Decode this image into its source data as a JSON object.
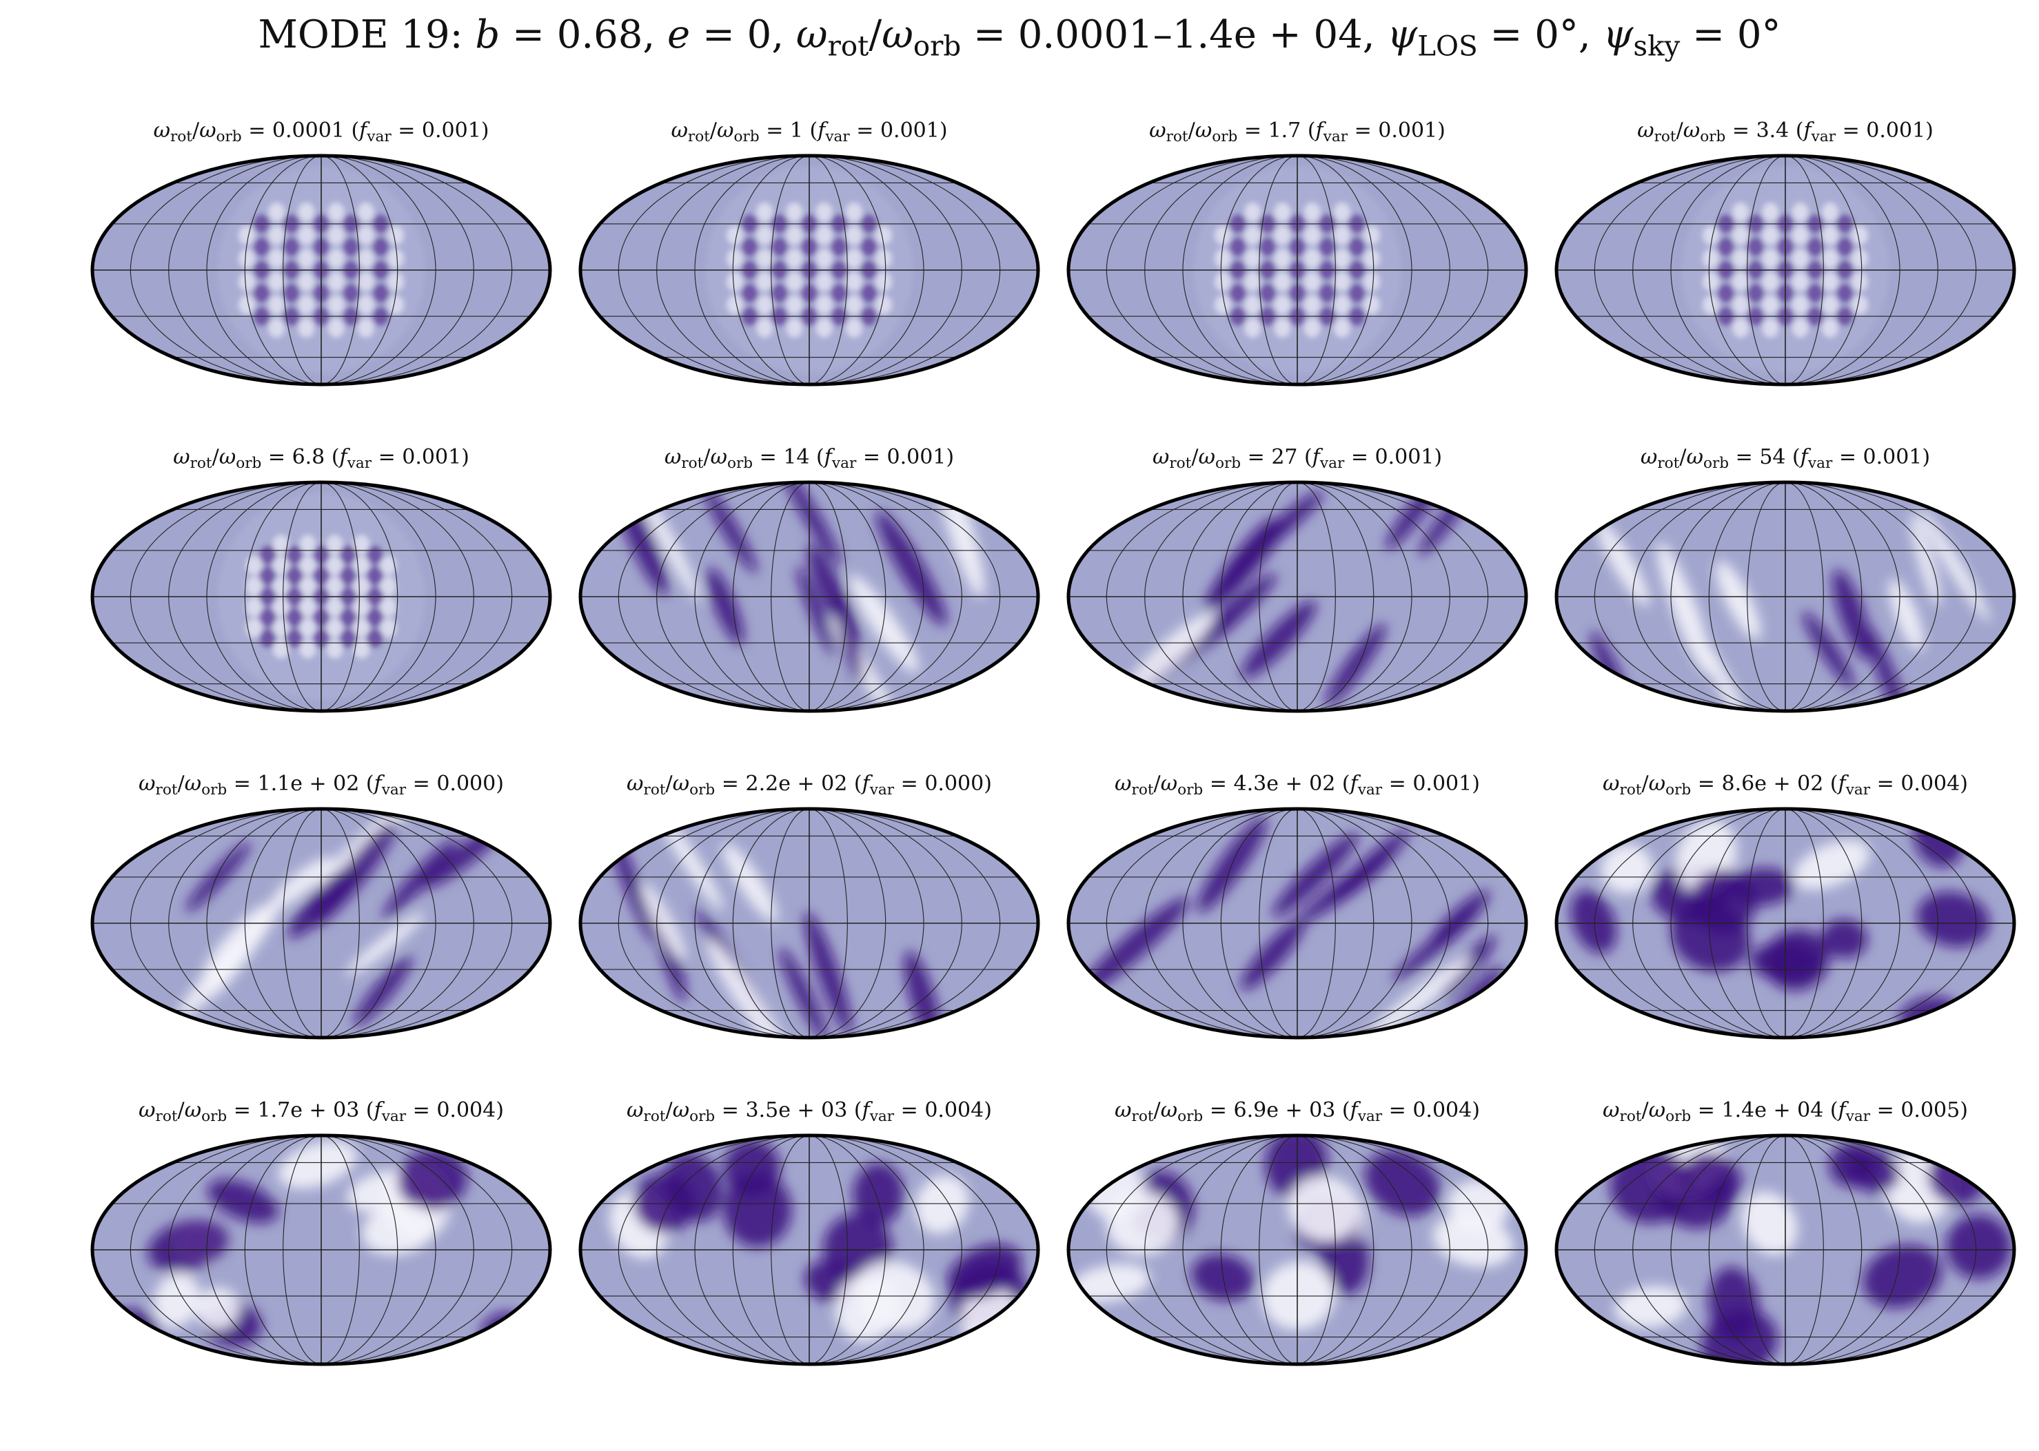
{
  "title": "MODE 19: b = 0.68, e = 0, ωrot/ωorb = 0.0001–1.4e + 04, ψLOS = 0°, ψsky = 0°",
  "title_parts": {
    "mode": "MODE 19:",
    "b": "0.68",
    "e": "0",
    "ratio_range": "0.0001–1.4e + 04",
    "psi_los": "0°",
    "psi_sky": "0°"
  },
  "colors": {
    "map_base": "#a2a6ce",
    "dark": "#3a0a7e",
    "light": "#f4f4fb",
    "grid": "#222222",
    "outline": "#000000"
  },
  "chart_data": {
    "type": "heatmap",
    "projection": "mollweide",
    "grid": true,
    "rows": 4,
    "cols": 4,
    "panels": [
      {
        "ratio": "0.0001",
        "fvar": "0.001"
      },
      {
        "ratio": "1",
        "fvar": "0.001"
      },
      {
        "ratio": "1.7",
        "fvar": "0.001"
      },
      {
        "ratio": "3.4",
        "fvar": "0.001"
      },
      {
        "ratio": "6.8",
        "fvar": "0.001"
      },
      {
        "ratio": "14",
        "fvar": "0.001"
      },
      {
        "ratio": "27",
        "fvar": "0.001"
      },
      {
        "ratio": "54",
        "fvar": "0.001"
      },
      {
        "ratio": "1.1e + 02",
        "fvar": "0.000"
      },
      {
        "ratio": "2.2e + 02",
        "fvar": "0.000"
      },
      {
        "ratio": "4.3e + 02",
        "fvar": "0.001"
      },
      {
        "ratio": "8.6e + 02",
        "fvar": "0.004"
      },
      {
        "ratio": "1.7e + 03",
        "fvar": "0.004"
      },
      {
        "ratio": "3.5e + 03",
        "fvar": "0.004"
      },
      {
        "ratio": "6.9e + 03",
        "fvar": "0.004"
      },
      {
        "ratio": "1.4e + 04",
        "fvar": "0.005"
      }
    ]
  }
}
